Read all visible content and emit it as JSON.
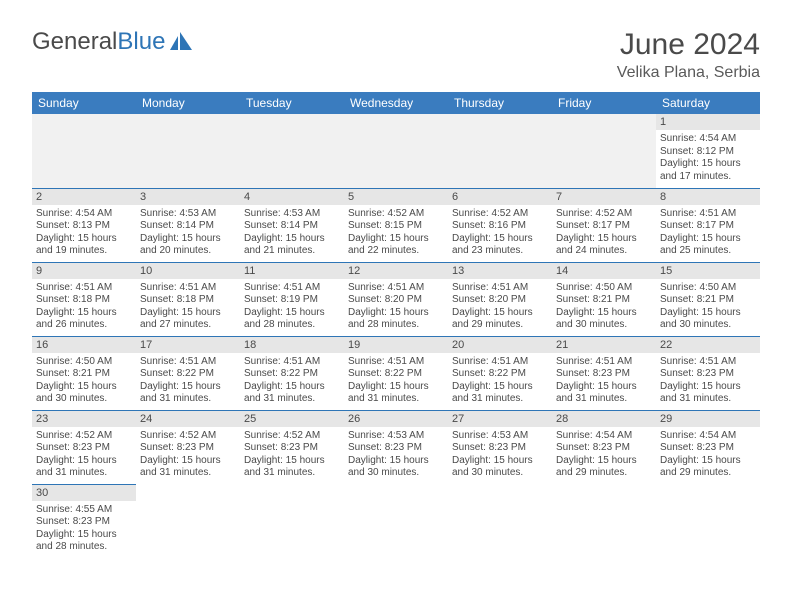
{
  "brand": {
    "general": "General",
    "blue": "Blue"
  },
  "title": "June 2024",
  "location": "Velika Plana, Serbia",
  "headers": [
    "Sunday",
    "Monday",
    "Tuesday",
    "Wednesday",
    "Thursday",
    "Friday",
    "Saturday"
  ],
  "colors": {
    "header_bg": "#3a7cbf",
    "header_text": "#ffffff",
    "daynum_bg": "#e6e6e6",
    "border": "#2e75b6",
    "empty_bg": "#f1f1f1",
    "text": "#4a4a4a",
    "logo_blue": "#2e75b6"
  },
  "weeks": [
    [
      null,
      null,
      null,
      null,
      null,
      null,
      {
        "d": "1",
        "sr": "Sunrise: 4:54 AM",
        "ss": "Sunset: 8:12 PM",
        "dl1": "Daylight: 15 hours",
        "dl2": "and 17 minutes."
      }
    ],
    [
      {
        "d": "2",
        "sr": "Sunrise: 4:54 AM",
        "ss": "Sunset: 8:13 PM",
        "dl1": "Daylight: 15 hours",
        "dl2": "and 19 minutes."
      },
      {
        "d": "3",
        "sr": "Sunrise: 4:53 AM",
        "ss": "Sunset: 8:14 PM",
        "dl1": "Daylight: 15 hours",
        "dl2": "and 20 minutes."
      },
      {
        "d": "4",
        "sr": "Sunrise: 4:53 AM",
        "ss": "Sunset: 8:14 PM",
        "dl1": "Daylight: 15 hours",
        "dl2": "and 21 minutes."
      },
      {
        "d": "5",
        "sr": "Sunrise: 4:52 AM",
        "ss": "Sunset: 8:15 PM",
        "dl1": "Daylight: 15 hours",
        "dl2": "and 22 minutes."
      },
      {
        "d": "6",
        "sr": "Sunrise: 4:52 AM",
        "ss": "Sunset: 8:16 PM",
        "dl1": "Daylight: 15 hours",
        "dl2": "and 23 minutes."
      },
      {
        "d": "7",
        "sr": "Sunrise: 4:52 AM",
        "ss": "Sunset: 8:17 PM",
        "dl1": "Daylight: 15 hours",
        "dl2": "and 24 minutes."
      },
      {
        "d": "8",
        "sr": "Sunrise: 4:51 AM",
        "ss": "Sunset: 8:17 PM",
        "dl1": "Daylight: 15 hours",
        "dl2": "and 25 minutes."
      }
    ],
    [
      {
        "d": "9",
        "sr": "Sunrise: 4:51 AM",
        "ss": "Sunset: 8:18 PM",
        "dl1": "Daylight: 15 hours",
        "dl2": "and 26 minutes."
      },
      {
        "d": "10",
        "sr": "Sunrise: 4:51 AM",
        "ss": "Sunset: 8:18 PM",
        "dl1": "Daylight: 15 hours",
        "dl2": "and 27 minutes."
      },
      {
        "d": "11",
        "sr": "Sunrise: 4:51 AM",
        "ss": "Sunset: 8:19 PM",
        "dl1": "Daylight: 15 hours",
        "dl2": "and 28 minutes."
      },
      {
        "d": "12",
        "sr": "Sunrise: 4:51 AM",
        "ss": "Sunset: 8:20 PM",
        "dl1": "Daylight: 15 hours",
        "dl2": "and 28 minutes."
      },
      {
        "d": "13",
        "sr": "Sunrise: 4:51 AM",
        "ss": "Sunset: 8:20 PM",
        "dl1": "Daylight: 15 hours",
        "dl2": "and 29 minutes."
      },
      {
        "d": "14",
        "sr": "Sunrise: 4:50 AM",
        "ss": "Sunset: 8:21 PM",
        "dl1": "Daylight: 15 hours",
        "dl2": "and 30 minutes."
      },
      {
        "d": "15",
        "sr": "Sunrise: 4:50 AM",
        "ss": "Sunset: 8:21 PM",
        "dl1": "Daylight: 15 hours",
        "dl2": "and 30 minutes."
      }
    ],
    [
      {
        "d": "16",
        "sr": "Sunrise: 4:50 AM",
        "ss": "Sunset: 8:21 PM",
        "dl1": "Daylight: 15 hours",
        "dl2": "and 30 minutes."
      },
      {
        "d": "17",
        "sr": "Sunrise: 4:51 AM",
        "ss": "Sunset: 8:22 PM",
        "dl1": "Daylight: 15 hours",
        "dl2": "and 31 minutes."
      },
      {
        "d": "18",
        "sr": "Sunrise: 4:51 AM",
        "ss": "Sunset: 8:22 PM",
        "dl1": "Daylight: 15 hours",
        "dl2": "and 31 minutes."
      },
      {
        "d": "19",
        "sr": "Sunrise: 4:51 AM",
        "ss": "Sunset: 8:22 PM",
        "dl1": "Daylight: 15 hours",
        "dl2": "and 31 minutes."
      },
      {
        "d": "20",
        "sr": "Sunrise: 4:51 AM",
        "ss": "Sunset: 8:22 PM",
        "dl1": "Daylight: 15 hours",
        "dl2": "and 31 minutes."
      },
      {
        "d": "21",
        "sr": "Sunrise: 4:51 AM",
        "ss": "Sunset: 8:23 PM",
        "dl1": "Daylight: 15 hours",
        "dl2": "and 31 minutes."
      },
      {
        "d": "22",
        "sr": "Sunrise: 4:51 AM",
        "ss": "Sunset: 8:23 PM",
        "dl1": "Daylight: 15 hours",
        "dl2": "and 31 minutes."
      }
    ],
    [
      {
        "d": "23",
        "sr": "Sunrise: 4:52 AM",
        "ss": "Sunset: 8:23 PM",
        "dl1": "Daylight: 15 hours",
        "dl2": "and 31 minutes."
      },
      {
        "d": "24",
        "sr": "Sunrise: 4:52 AM",
        "ss": "Sunset: 8:23 PM",
        "dl1": "Daylight: 15 hours",
        "dl2": "and 31 minutes."
      },
      {
        "d": "25",
        "sr": "Sunrise: 4:52 AM",
        "ss": "Sunset: 8:23 PM",
        "dl1": "Daylight: 15 hours",
        "dl2": "and 31 minutes."
      },
      {
        "d": "26",
        "sr": "Sunrise: 4:53 AM",
        "ss": "Sunset: 8:23 PM",
        "dl1": "Daylight: 15 hours",
        "dl2": "and 30 minutes."
      },
      {
        "d": "27",
        "sr": "Sunrise: 4:53 AM",
        "ss": "Sunset: 8:23 PM",
        "dl1": "Daylight: 15 hours",
        "dl2": "and 30 minutes."
      },
      {
        "d": "28",
        "sr": "Sunrise: 4:54 AM",
        "ss": "Sunset: 8:23 PM",
        "dl1": "Daylight: 15 hours",
        "dl2": "and 29 minutes."
      },
      {
        "d": "29",
        "sr": "Sunrise: 4:54 AM",
        "ss": "Sunset: 8:23 PM",
        "dl1": "Daylight: 15 hours",
        "dl2": "and 29 minutes."
      }
    ],
    [
      {
        "d": "30",
        "sr": "Sunrise: 4:55 AM",
        "ss": "Sunset: 8:23 PM",
        "dl1": "Daylight: 15 hours",
        "dl2": "and 28 minutes."
      },
      null,
      null,
      null,
      null,
      null,
      null
    ]
  ]
}
